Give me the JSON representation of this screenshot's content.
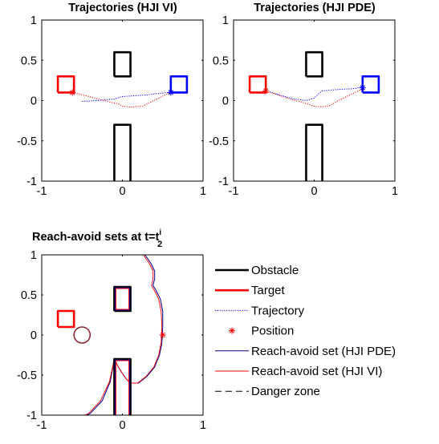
{
  "chart_data": [
    {
      "type": "line",
      "title": "Trajectories (HJI VI)",
      "xlim": [
        -1,
        1
      ],
      "ylim": [
        -1,
        1
      ],
      "xticks": [
        "-1",
        "0",
        "1"
      ],
      "yticks": [
        "-1",
        "-0.5",
        "0",
        "0.5",
        "1"
      ],
      "grid": false,
      "series": [
        {
          "role": "obstacle",
          "color": "#000000",
          "polygons": [
            [
              [
                -0.1,
                0.3
              ],
              [
                0.1,
                0.3
              ],
              [
                0.1,
                0.6
              ],
              [
                -0.1,
                0.6
              ],
              [
                -0.1,
                0.3
              ]
            ],
            [
              [
                -0.1,
                -1
              ],
              [
                -0.1,
                -0.3
              ],
              [
                0.1,
                -0.3
              ],
              [
                0.1,
                -1
              ]
            ]
          ]
        },
        {
          "role": "target",
          "color": "#ff0000",
          "polygons": [
            [
              [
                -0.8,
                0.1
              ],
              [
                -0.6,
                0.1
              ],
              [
                -0.6,
                0.3
              ],
              [
                -0.8,
                0.3
              ],
              [
                -0.8,
                0.1
              ]
            ]
          ]
        },
        {
          "role": "target",
          "color": "#0000ff",
          "polygons": [
            [
              [
                0.6,
                0.1
              ],
              [
                0.8,
                0.1
              ],
              [
                0.8,
                0.3
              ],
              [
                0.6,
                0.3
              ],
              [
                0.6,
                0.1
              ]
            ]
          ]
        },
        {
          "role": "trajectory",
          "color": "#ff0000",
          "points": [
            [
              -0.62,
              0.1
            ],
            [
              -0.45,
              0.06
            ],
            [
              -0.3,
              0.02
            ],
            [
              -0.15,
              -0.02
            ],
            [
              -0.05,
              -0.04
            ],
            [
              0.0,
              -0.07
            ],
            [
              0.1,
              -0.08
            ],
            [
              0.25,
              -0.07
            ],
            [
              0.35,
              -0.02
            ],
            [
              0.45,
              0.03
            ],
            [
              0.55,
              0.08
            ],
            [
              0.62,
              0.1
            ]
          ]
        },
        {
          "role": "trajectory",
          "color": "#0000ff",
          "points": [
            [
              -0.5,
              -0.01
            ],
            [
              -0.3,
              0.0
            ],
            [
              -0.1,
              0.02
            ],
            [
              0.0,
              0.05
            ],
            [
              0.15,
              0.06
            ],
            [
              0.3,
              0.07
            ],
            [
              0.45,
              0.09
            ],
            [
              0.58,
              0.1
            ],
            [
              0.62,
              0.12
            ]
          ]
        },
        {
          "role": "position",
          "color": "#ff0000",
          "points": [
            [
              -0.62,
              0.1
            ]
          ]
        },
        {
          "role": "position",
          "color": "#0000ff",
          "points": [
            [
              0.6,
              0.1
            ]
          ]
        }
      ]
    },
    {
      "type": "line",
      "title": "Trajectories (HJI PDE)",
      "xlim": [
        -1,
        1
      ],
      "ylim": [
        -1,
        1
      ],
      "xticks": [
        "-1",
        "0",
        "1"
      ],
      "yticks": [
        "-1",
        "-0.5",
        "0",
        "0.5",
        "1"
      ],
      "grid": false,
      "series": [
        {
          "role": "obstacle",
          "color": "#000000",
          "polygons": [
            [
              [
                -0.1,
                0.3
              ],
              [
                0.1,
                0.3
              ],
              [
                0.1,
                0.6
              ],
              [
                -0.1,
                0.6
              ],
              [
                -0.1,
                0.3
              ]
            ],
            [
              [
                -0.1,
                -1
              ],
              [
                -0.1,
                -0.3
              ],
              [
                0.1,
                -0.3
              ],
              [
                0.1,
                -1
              ]
            ]
          ]
        },
        {
          "role": "target",
          "color": "#ff0000",
          "polygons": [
            [
              [
                -0.8,
                0.1
              ],
              [
                -0.6,
                0.1
              ],
              [
                -0.6,
                0.3
              ],
              [
                -0.8,
                0.3
              ],
              [
                -0.8,
                0.1
              ]
            ]
          ]
        },
        {
          "role": "target",
          "color": "#0000ff",
          "polygons": [
            [
              [
                0.6,
                0.1
              ],
              [
                0.8,
                0.1
              ],
              [
                0.8,
                0.3
              ],
              [
                0.6,
                0.3
              ],
              [
                0.6,
                0.1
              ]
            ]
          ]
        },
        {
          "role": "trajectory",
          "color": "#ff0000",
          "points": [
            [
              -0.62,
              0.12
            ],
            [
              -0.45,
              0.07
            ],
            [
              -0.3,
              0.02
            ],
            [
              -0.15,
              -0.02
            ],
            [
              0.0,
              -0.07
            ],
            [
              0.1,
              -0.08
            ],
            [
              0.2,
              -0.06
            ],
            [
              0.3,
              0.0
            ],
            [
              0.42,
              0.06
            ],
            [
              0.55,
              0.12
            ],
            [
              0.62,
              0.15
            ]
          ]
        },
        {
          "role": "trajectory",
          "color": "#0000ff",
          "points": [
            [
              -0.55,
              0.11
            ],
            [
              -0.4,
              0.06
            ],
            [
              -0.25,
              0.02
            ],
            [
              -0.1,
              0.0
            ],
            [
              0.0,
              0.03
            ],
            [
              0.05,
              0.08
            ],
            [
              0.1,
              0.12
            ],
            [
              0.2,
              0.13
            ],
            [
              0.35,
              0.14
            ],
            [
              0.5,
              0.15
            ],
            [
              0.6,
              0.17
            ]
          ]
        },
        {
          "role": "position",
          "color": "#ff0000",
          "points": [
            [
              -0.6,
              0.12
            ]
          ]
        },
        {
          "role": "position",
          "color": "#0000ff",
          "points": [
            [
              0.6,
              0.16
            ]
          ]
        }
      ]
    },
    {
      "type": "line",
      "title": "Reach-avoid sets at t=t",
      "title_sup": "i",
      "title_sub": "2",
      "xlim": [
        -1,
        1
      ],
      "ylim": [
        -1,
        1
      ],
      "xticks": [
        "-1",
        "0",
        "1"
      ],
      "yticks": [
        "-1",
        "-0.5",
        "0",
        "0.5",
        "1"
      ],
      "grid": false,
      "legend_position": "right",
      "legend": [
        {
          "label": "Obstacle",
          "color": "#000000",
          "style": "solid-thick"
        },
        {
          "label": "Target",
          "color": "#ff0000",
          "style": "solid-thick"
        },
        {
          "label": "Trajectory",
          "color": "#0000ff",
          "style": "dotted"
        },
        {
          "label": "Position",
          "color": "#ff0000",
          "style": "star"
        },
        {
          "label": "Reach-avoid set (HJI PDE)",
          "color": "#00008b",
          "style": "solid"
        },
        {
          "label": "Reach-avoid set (HJI VI)",
          "color": "#ff0000",
          "style": "solid"
        },
        {
          "label": "Danger zone",
          "color": "#000000",
          "style": "dashed"
        }
      ],
      "series": [
        {
          "role": "reach-avoid-pde",
          "color": "#00008b",
          "points": [
            [
              0.28,
              1.0
            ],
            [
              0.35,
              0.9
            ],
            [
              0.4,
              0.8
            ],
            [
              0.4,
              0.7
            ],
            [
              0.38,
              0.62
            ],
            [
              0.42,
              0.55
            ],
            [
              0.47,
              0.45
            ],
            [
              0.5,
              0.3
            ],
            [
              0.5,
              0.1
            ],
            [
              0.49,
              -0.1
            ],
            [
              0.46,
              -0.25
            ],
            [
              0.4,
              -0.4
            ],
            [
              0.3,
              -0.52
            ],
            [
              0.2,
              -0.6
            ],
            [
              0.1,
              -0.6
            ],
            [
              0.05,
              -0.55
            ],
            [
              0.0,
              -0.48
            ],
            [
              -0.05,
              -0.4
            ],
            [
              -0.1,
              -0.3
            ],
            [
              -0.15,
              -0.58
            ],
            [
              -0.25,
              -0.82
            ],
            [
              -0.4,
              -0.98
            ],
            [
              -0.45,
              -1.0
            ]
          ]
        },
        {
          "role": "reach-avoid-vi",
          "color": "#ff0000",
          "points": [
            [
              0.26,
              1.0
            ],
            [
              0.33,
              0.9
            ],
            [
              0.38,
              0.8
            ],
            [
              0.38,
              0.7
            ],
            [
              0.36,
              0.62
            ],
            [
              0.4,
              0.55
            ],
            [
              0.45,
              0.45
            ],
            [
              0.48,
              0.3
            ],
            [
              0.49,
              0.1
            ],
            [
              0.48,
              -0.1
            ],
            [
              0.45,
              -0.25
            ],
            [
              0.39,
              -0.4
            ],
            [
              0.29,
              -0.52
            ],
            [
              0.19,
              -0.6
            ],
            [
              0.1,
              -0.6
            ],
            [
              0.05,
              -0.55
            ],
            [
              0.0,
              -0.48
            ],
            [
              -0.05,
              -0.4
            ],
            [
              -0.1,
              -0.3
            ],
            [
              -0.16,
              -0.58
            ],
            [
              -0.27,
              -0.82
            ],
            [
              -0.42,
              -0.98
            ],
            [
              -0.47,
              -1.0
            ]
          ]
        },
        {
          "role": "obstacle",
          "color": "#000000",
          "polygons": [
            [
              [
                -0.1,
                0.3
              ],
              [
                0.1,
                0.3
              ],
              [
                0.1,
                0.6
              ],
              [
                -0.1,
                0.6
              ],
              [
                -0.1,
                0.3
              ]
            ],
            [
              [
                -0.1,
                -1
              ],
              [
                -0.1,
                -0.3
              ],
              [
                0.1,
                -0.3
              ],
              [
                0.1,
                -1
              ]
            ]
          ]
        },
        {
          "role": "reach-avoid-pde",
          "color": "#00008b",
          "polygons": [
            [
              [
                -0.09,
                0.31
              ],
              [
                0.09,
                0.31
              ],
              [
                0.09,
                0.59
              ],
              [
                -0.09,
                0.59
              ],
              [
                -0.09,
                0.31
              ]
            ],
            [
              [
                -0.09,
                -1
              ],
              [
                -0.09,
                -0.31
              ],
              [
                0.09,
                -0.31
              ],
              [
                0.09,
                -1
              ]
            ]
          ]
        },
        {
          "role": "reach-avoid-vi",
          "color": "#ff0000",
          "polygons": [
            [
              [
                -0.08,
                0.32
              ],
              [
                0.08,
                0.32
              ],
              [
                0.08,
                0.58
              ],
              [
                -0.08,
                0.58
              ],
              [
                -0.08,
                0.32
              ]
            ],
            [
              [
                -0.08,
                -1
              ],
              [
                -0.08,
                -0.32
              ],
              [
                0.08,
                -0.32
              ],
              [
                0.08,
                -1
              ]
            ]
          ]
        },
        {
          "role": "target",
          "color": "#ff0000",
          "polygons": [
            [
              [
                -0.8,
                0.1
              ],
              [
                -0.6,
                0.1
              ],
              [
                -0.6,
                0.3
              ],
              [
                -0.8,
                0.3
              ],
              [
                -0.8,
                0.1
              ]
            ]
          ]
        },
        {
          "role": "danger-circle",
          "color": "#8b1a2b",
          "circle": {
            "cx": -0.5,
            "cy": 0.0,
            "r": 0.1
          }
        },
        {
          "role": "position",
          "color": "#ff0000",
          "points": [
            [
              0.5,
              0.0
            ]
          ]
        }
      ]
    }
  ]
}
